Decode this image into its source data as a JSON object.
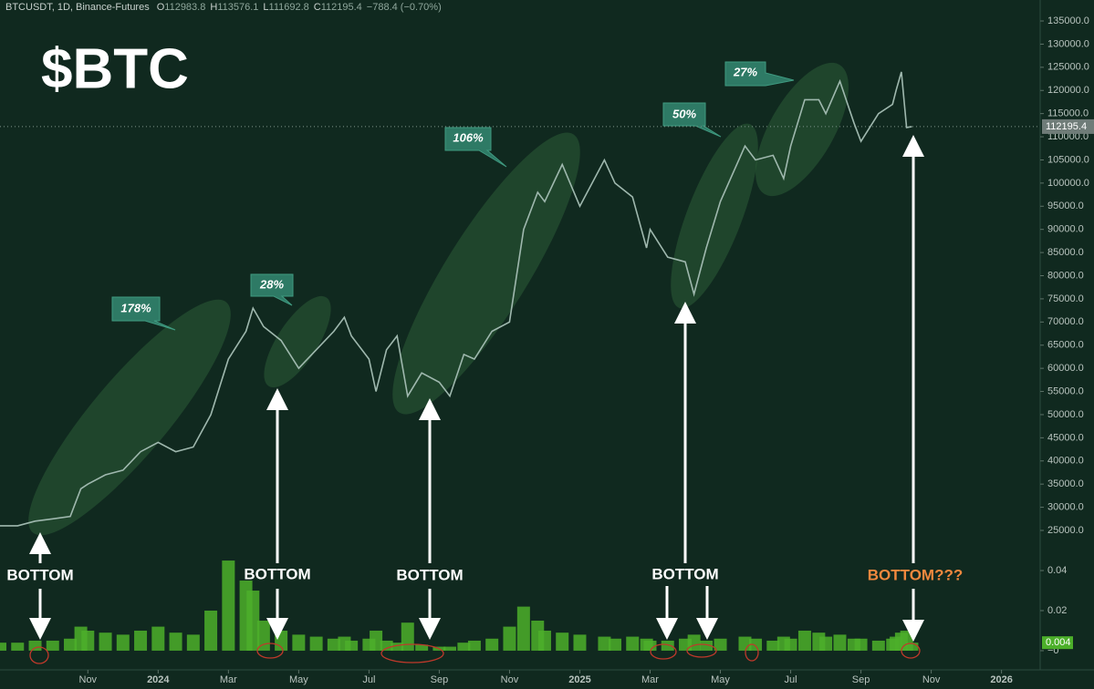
{
  "header": {
    "symbol": "BTCUSDT, 1D, Binance-Futures",
    "open_label": "O",
    "open": 112983.8,
    "high_label": "H",
    "high": 113576.1,
    "low_label": "L",
    "low": 111692.8,
    "close_label": "C",
    "close": 112195.4,
    "change": "−788.4 (−0.70%)"
  },
  "title": "$BTC",
  "annotations": {
    "gains": [
      "178%",
      "28%",
      "106%",
      "50%",
      "27%"
    ],
    "bottoms": [
      "BOTTOM",
      "BOTTOM",
      "BOTTOM",
      "BOTTOM",
      "BOTTOM???"
    ]
  },
  "chart_data": {
    "type": "line",
    "x": [
      -0.5,
      0,
      0.5,
      1,
      1.5,
      1.8,
      2,
      2.5,
      3,
      3.5,
      4,
      4.5,
      5,
      5.5,
      6,
      6.5,
      6.7,
      7,
      7.5,
      8,
      8.5,
      9,
      9.3,
      9.5,
      10,
      10.2,
      10.5,
      10.8,
      11.1,
      11.5,
      12,
      12.3,
      12.7,
      13,
      13.5,
      14,
      14.4,
      14.8,
      15,
      15.5,
      16,
      16.7,
      17,
      17.5,
      17.9,
      18,
      18.5,
      19,
      19.25,
      19.6,
      20,
      20.7,
      21,
      21.5,
      21.8,
      22,
      22.4,
      22.8,
      23,
      23.4,
      23.8,
      24,
      24.5,
      24.9,
      25,
      25.15,
      25.3,
      25.45
    ],
    "series": [
      {
        "color": "#9fb8ae",
        "values": [
          26000,
          26000,
          27000,
          27500,
          28000,
          34000,
          35000,
          37000,
          38000,
          42000,
          44000,
          42000,
          43000,
          50000,
          62000,
          68000,
          73000,
          69000,
          66000,
          60000,
          64000,
          68000,
          71000,
          67000,
          62000,
          55000,
          64000,
          67000,
          54000,
          59000,
          57000,
          54000,
          63000,
          62000,
          68000,
          70000,
          90000,
          98000,
          96000,
          104000,
          95000,
          105000,
          100000,
          97000,
          86000,
          90000,
          84000,
          83000,
          76000,
          86000,
          96000,
          108000,
          105000,
          106000,
          101000,
          108000,
          118000,
          118000,
          115000,
          122000,
          113000,
          109000,
          115000,
          117000,
          120000,
          124000,
          112000,
          112195.4
        ]
      },
      {
        "type": "bar",
        "axis": "y2",
        "color": "#4caf2a",
        "values": [
          0.004,
          0.004,
          0.005,
          0.005,
          0.006,
          0.012,
          0.01,
          0.009,
          0.008,
          0.01,
          0.012,
          0.009,
          0.008,
          0.02,
          0.045,
          0.035,
          0.03,
          0.015,
          0.01,
          0.008,
          0.007,
          0.006,
          0.007,
          0.005,
          0.006,
          0.01,
          0.005,
          0.004,
          0.014,
          0.003,
          0.002,
          0.002,
          0.004,
          0.005,
          0.006,
          0.012,
          0.022,
          0.015,
          0.01,
          0.009,
          0.008,
          0.007,
          0.006,
          0.007,
          0.006,
          0.005,
          0.005,
          0.006,
          0.008,
          0.005,
          0.006,
          0.007,
          0.006,
          0.005,
          0.007,
          0.006,
          0.01,
          0.009,
          0.007,
          0.008,
          0.006,
          0.006,
          0.005,
          0.006,
          0.007,
          0.009,
          0.01,
          0.004
        ]
      }
    ],
    "xlim": [
      -0.5,
      29.1
    ],
    "xticks": [
      {
        "value": 2,
        "label": "Nov"
      },
      {
        "value": 4,
        "label": "2024"
      },
      {
        "value": 6,
        "label": "Mar"
      },
      {
        "value": 8,
        "label": "May"
      },
      {
        "value": 10,
        "label": "Jul"
      },
      {
        "value": 12,
        "label": "Sep"
      },
      {
        "value": 14,
        "label": "Nov"
      },
      {
        "value": 16,
        "label": "2025"
      },
      {
        "value": 18,
        "label": "Mar"
      },
      {
        "value": 20,
        "label": "May"
      },
      {
        "value": 22,
        "label": "Jul"
      },
      {
        "value": 24,
        "label": "Sep"
      },
      {
        "value": 26,
        "label": "Nov"
      },
      {
        "value": 28,
        "label": "2026"
      }
    ],
    "ylim": [
      22440,
      139530
    ],
    "yticks": [
      {
        "value": 25000,
        "label": "25000.0"
      },
      {
        "value": 30000,
        "label": "30000.0"
      },
      {
        "value": 35000,
        "label": "35000.0"
      },
      {
        "value": 40000,
        "label": "40000.0"
      },
      {
        "value": 45000,
        "label": "45000.0"
      },
      {
        "value": 50000,
        "label": "50000.0"
      },
      {
        "value": 55000,
        "label": "55000.0"
      },
      {
        "value": 60000,
        "label": "60000.0"
      },
      {
        "value": 65000,
        "label": "65000.0"
      },
      {
        "value": 70000,
        "label": "70000.0"
      },
      {
        "value": 75000,
        "label": "75000.0"
      },
      {
        "value": 80000,
        "label": "80000.0"
      },
      {
        "value": 85000,
        "label": "85000.0"
      },
      {
        "value": 90000,
        "label": "90000.0"
      },
      {
        "value": 95000,
        "label": "95000.0"
      },
      {
        "value": 100000,
        "label": "100000.0"
      },
      {
        "value": 105000,
        "label": "105000.0"
      },
      {
        "value": 110000,
        "label": "110000.0"
      },
      {
        "value": 115000,
        "label": "115000.0"
      },
      {
        "value": 120000,
        "label": "120000.0"
      },
      {
        "value": 125000,
        "label": "125000.0"
      },
      {
        "value": 130000,
        "label": "130000.0"
      },
      {
        "value": 135000,
        "label": "135000.0"
      }
    ],
    "y2lim": [
      -0.0073,
      0.0564
    ],
    "y2ticks": [
      0.04,
      0.02,
      {
        "value": 0,
        "label": "−0"
      }
    ],
    "volume_badge": 0.004
  }
}
